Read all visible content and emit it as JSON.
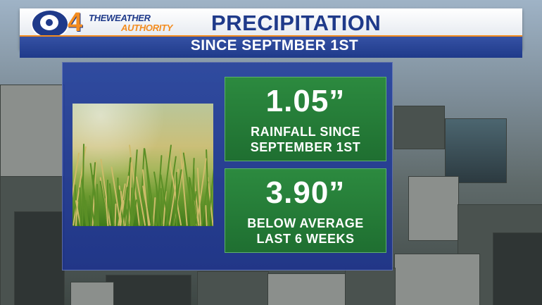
{
  "header": {
    "logo": {
      "number": "4",
      "line1": "THEWEATHER",
      "line2": "AUTHORITY"
    },
    "title": "PRECIPITATION",
    "subtitle": "SINCE SEPTMBER 1ST"
  },
  "stats": [
    {
      "value": "1.05”",
      "label_line1": "RAINFALL SINCE",
      "label_line2": "SEPTEMBER 1ST"
    },
    {
      "value": "3.90”",
      "label_line1": "BELOW AVERAGE",
      "label_line2": "LAST 6 WEEKS"
    }
  ],
  "colors": {
    "brand_blue": "#1f3a8a",
    "brand_orange": "#f38c1f",
    "panel_blue": "#28449e",
    "stat_green": "#2c8a3f"
  },
  "icons": {
    "logo": "cbs-eye-icon"
  }
}
